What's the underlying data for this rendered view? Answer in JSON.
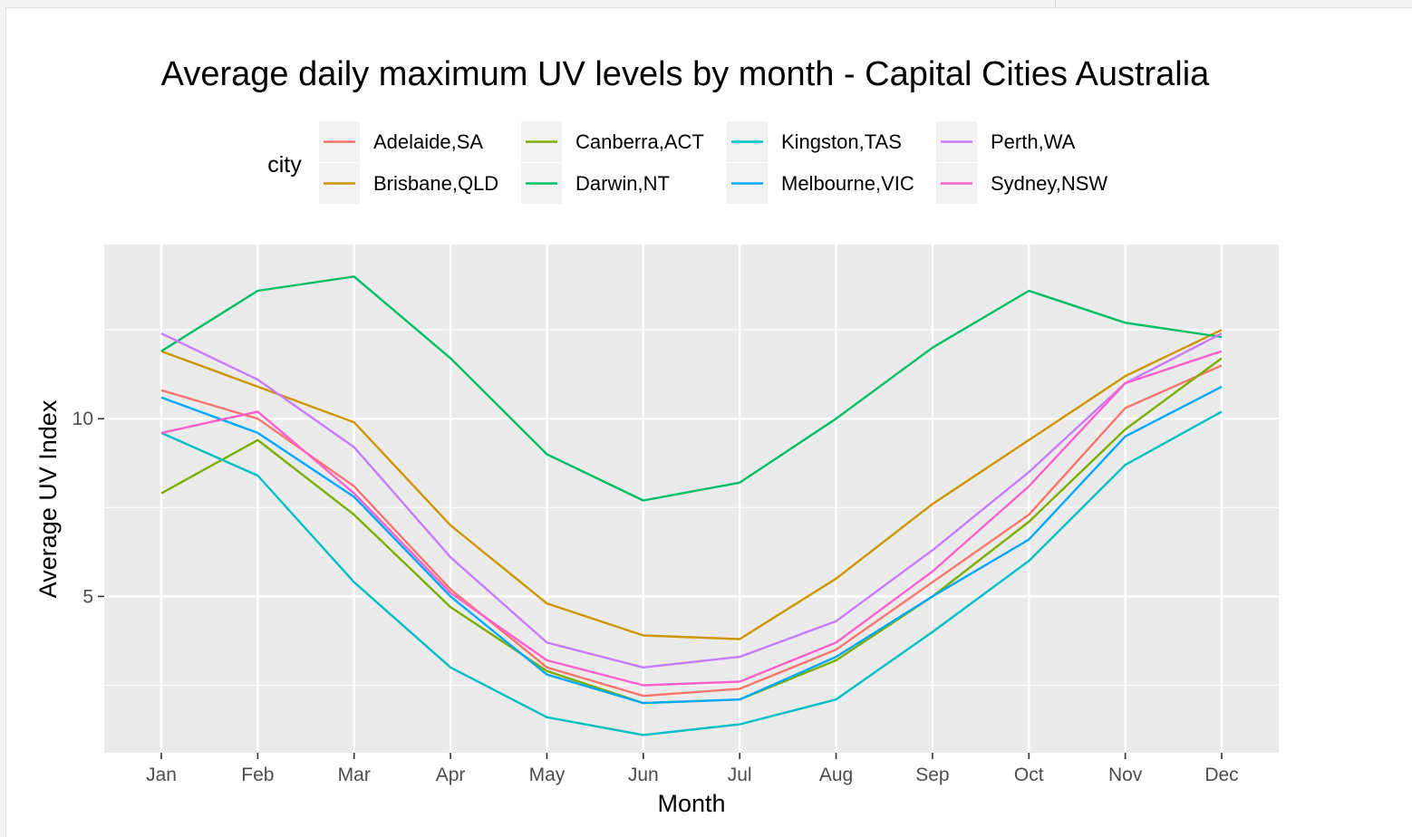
{
  "chart_data": {
    "type": "line",
    "title": "Average daily maximum UV levels by month - Capital Cities Australia",
    "xlabel": "Month",
    "ylabel": "Average UV Index",
    "legend_title": "city",
    "legend_position": "top",
    "grid": true,
    "categories": [
      "Jan",
      "Feb",
      "Mar",
      "Apr",
      "May",
      "Jun",
      "Jul",
      "Aug",
      "Sep",
      "Oct",
      "Nov",
      "Dec"
    ],
    "y_ticks": [
      5,
      10
    ],
    "ylim": [
      0.6,
      14.9
    ],
    "series": [
      {
        "name": "Adelaide,SA",
        "color": "#F8766D",
        "values": [
          10.8,
          10.0,
          8.1,
          5.2,
          3.0,
          2.2,
          2.4,
          3.5,
          5.4,
          7.3,
          10.3,
          11.5
        ]
      },
      {
        "name": "Brisbane,QLD",
        "color": "#CD9600",
        "values": [
          11.9,
          10.9,
          9.9,
          7.0,
          4.8,
          3.9,
          3.8,
          5.5,
          7.6,
          9.4,
          11.2,
          12.5
        ]
      },
      {
        "name": "Canberra,ACT",
        "color": "#7CAE00",
        "values": [
          7.9,
          9.4,
          7.3,
          4.7,
          2.9,
          2.0,
          2.1,
          3.2,
          5.0,
          7.1,
          9.7,
          11.7
        ]
      },
      {
        "name": "Darwin,NT",
        "color": "#00BE67",
        "values": [
          11.9,
          13.6,
          14.0,
          11.7,
          9.0,
          7.7,
          8.2,
          10.0,
          12.0,
          13.6,
          12.7,
          12.3
        ]
      },
      {
        "name": "Kingston,TAS",
        "color": "#00BFC4",
        "values": [
          9.6,
          8.4,
          5.4,
          3.0,
          1.6,
          1.1,
          1.4,
          2.1,
          4.0,
          6.0,
          8.7,
          10.2
        ]
      },
      {
        "name": "Melbourne,VIC",
        "color": "#00A9FF",
        "values": [
          10.6,
          9.6,
          7.8,
          5.0,
          2.8,
          2.0,
          2.1,
          3.3,
          5.0,
          6.6,
          9.5,
          10.9
        ]
      },
      {
        "name": "Perth,WA",
        "color": "#C77CFF",
        "values": [
          12.4,
          11.1,
          9.2,
          6.1,
          3.7,
          3.0,
          3.3,
          4.3,
          6.3,
          8.5,
          11.0,
          12.4
        ]
      },
      {
        "name": "Sydney,NSW",
        "color": "#FF61CC",
        "values": [
          9.6,
          10.2,
          7.9,
          5.1,
          3.2,
          2.5,
          2.6,
          3.7,
          5.7,
          8.1,
          11.0,
          11.9
        ]
      }
    ]
  }
}
